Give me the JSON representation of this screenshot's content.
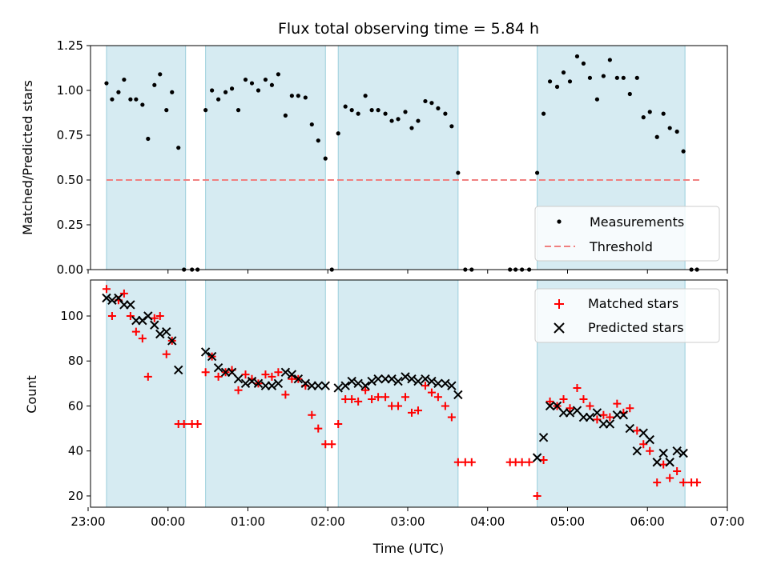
{
  "chart_data": [
    {
      "type": "scatter",
      "title": "Flux total observing time = 5.84 h",
      "xlabel": "",
      "ylabel": "Matched/Predicted stars",
      "ylim": [
        0,
        1.25
      ],
      "yticks": [
        "0.00",
        "0.25",
        "0.50",
        "0.75",
        "1.00",
        "1.25"
      ],
      "xlim_hours": [
        -0.97,
        7.0
      ],
      "observing_windows": [
        [
          -0.77,
          0.22
        ],
        [
          0.47,
          1.97
        ],
        [
          2.13,
          3.63
        ],
        [
          4.62,
          6.47
        ]
      ],
      "legend": "lower-right",
      "threshold": {
        "name": "Threshold",
        "value": 0.5,
        "x_range": [
          -0.77,
          6.67
        ],
        "color": "#f08080"
      },
      "series": [
        {
          "name": "Measurements",
          "color": "#000000",
          "x": [
            -0.77,
            -0.7,
            -0.62,
            -0.55,
            -0.47,
            -0.4,
            -0.32,
            -0.25,
            -0.17,
            -0.1,
            -0.02,
            0.05,
            0.13,
            0.2,
            0.3,
            0.37,
            0.47,
            0.55,
            0.63,
            0.72,
            0.8,
            0.88,
            0.97,
            1.05,
            1.13,
            1.22,
            1.3,
            1.38,
            1.47,
            1.55,
            1.63,
            1.72,
            1.8,
            1.88,
            1.97,
            2.05,
            2.13,
            2.22,
            2.3,
            2.38,
            2.47,
            2.55,
            2.63,
            2.72,
            2.8,
            2.88,
            2.97,
            3.05,
            3.13,
            3.22,
            3.3,
            3.38,
            3.47,
            3.55,
            3.63,
            3.72,
            3.8,
            4.28,
            4.35,
            4.43,
            4.52,
            4.62,
            4.7,
            4.78,
            4.87,
            4.95,
            5.03,
            5.12,
            5.2,
            5.28,
            5.37,
            5.45,
            5.53,
            5.62,
            5.7,
            5.78,
            5.87,
            5.95,
            6.03,
            6.12,
            6.2,
            6.28,
            6.37,
            6.45,
            6.55,
            6.62
          ],
          "y": [
            1.04,
            0.95,
            0.99,
            1.06,
            0.95,
            0.95,
            0.92,
            0.73,
            1.03,
            1.09,
            0.89,
            0.99,
            0.68,
            0.0,
            0.0,
            0.0,
            0.89,
            1.0,
            0.95,
            0.99,
            1.01,
            0.89,
            1.06,
            1.04,
            1.0,
            1.06,
            1.03,
            1.09,
            0.86,
            0.97,
            0.97,
            0.96,
            0.81,
            0.72,
            0.62,
            0.0,
            0.76,
            0.91,
            0.89,
            0.87,
            0.97,
            0.89,
            0.89,
            0.87,
            0.83,
            0.84,
            0.88,
            0.79,
            0.83,
            0.94,
            0.93,
            0.9,
            0.87,
            0.8,
            0.54,
            0.0,
            0.0,
            0.0,
            0.0,
            0.0,
            0.0,
            0.54,
            0.87,
            1.05,
            1.02,
            1.1,
            1.05,
            1.19,
            1.15,
            1.07,
            0.95,
            1.08,
            1.17,
            1.07,
            1.07,
            0.98,
            1.07,
            0.85,
            0.88,
            0.74,
            0.87,
            0.79,
            0.77,
            0.66,
            0.0,
            0.0
          ]
        }
      ]
    },
    {
      "type": "scatter",
      "title": "",
      "xlabel": "Time (UTC)",
      "ylabel": "Count",
      "ylim": [
        15,
        116
      ],
      "yticks": [
        "20",
        "40",
        "60",
        "80",
        "100"
      ],
      "xlim_hours": [
        -0.97,
        7.0
      ],
      "xticks": [
        "23:00",
        "00:00",
        "01:00",
        "02:00",
        "03:00",
        "04:00",
        "05:00",
        "06:00",
        "07:00"
      ],
      "observing_windows": [
        [
          -0.77,
          0.22
        ],
        [
          0.47,
          1.97
        ],
        [
          2.13,
          3.63
        ],
        [
          4.62,
          6.47
        ]
      ],
      "legend": "top-right",
      "series": [
        {
          "name": "Matched stars",
          "marker": "plus",
          "color": "#ff0000",
          "x": [
            -0.77,
            -0.7,
            -0.62,
            -0.55,
            -0.47,
            -0.4,
            -0.32,
            -0.25,
            -0.17,
            -0.1,
            -0.02,
            0.05,
            0.13,
            0.2,
            0.3,
            0.37,
            0.47,
            0.55,
            0.63,
            0.72,
            0.8,
            0.88,
            0.97,
            1.05,
            1.13,
            1.22,
            1.3,
            1.38,
            1.47,
            1.55,
            1.63,
            1.72,
            1.8,
            1.88,
            1.97,
            2.05,
            2.13,
            2.22,
            2.3,
            2.38,
            2.47,
            2.55,
            2.63,
            2.72,
            2.8,
            2.88,
            2.97,
            3.05,
            3.13,
            3.22,
            3.3,
            3.38,
            3.47,
            3.55,
            3.63,
            3.72,
            3.8,
            4.28,
            4.35,
            4.43,
            4.52,
            4.62,
            4.7,
            4.78,
            4.87,
            4.95,
            5.03,
            5.12,
            5.2,
            5.28,
            5.37,
            5.45,
            5.53,
            5.62,
            5.7,
            5.78,
            5.87,
            5.95,
            6.03,
            6.12,
            6.2,
            6.28,
            6.37,
            6.45,
            6.55,
            6.62
          ],
          "y": [
            112,
            100,
            107,
            110,
            100,
            93,
            90,
            73,
            99,
            100,
            83,
            89,
            52,
            52,
            52,
            52,
            75,
            82,
            73,
            75,
            76,
            67,
            74,
            72,
            70,
            74,
            73,
            75,
            65,
            72,
            72,
            69,
            56,
            50,
            43,
            43,
            52,
            63,
            63,
            62,
            67,
            63,
            64,
            64,
            60,
            60,
            64,
            57,
            58,
            69,
            66,
            64,
            60,
            55,
            35,
            35,
            35,
            35,
            35,
            35,
            35,
            20,
            36,
            62,
            60,
            63,
            59,
            68,
            63,
            60,
            54,
            56,
            55,
            61,
            57,
            59,
            49,
            43,
            40,
            26,
            34,
            28,
            31,
            26,
            26,
            26
          ]
        },
        {
          "name": "Predicted stars",
          "marker": "x",
          "color": "#000000",
          "x": [
            -0.77,
            -0.7,
            -0.62,
            -0.55,
            -0.47,
            -0.4,
            -0.32,
            -0.25,
            -0.17,
            -0.1,
            -0.02,
            0.05,
            0.13,
            0.47,
            0.55,
            0.63,
            0.72,
            0.8,
            0.88,
            0.97,
            1.05,
            1.13,
            1.22,
            1.3,
            1.38,
            1.47,
            1.55,
            1.63,
            1.72,
            1.8,
            1.88,
            1.97,
            2.13,
            2.22,
            2.3,
            2.38,
            2.47,
            2.55,
            2.63,
            2.72,
            2.8,
            2.88,
            2.97,
            3.05,
            3.13,
            3.22,
            3.3,
            3.38,
            3.47,
            3.55,
            3.63,
            4.62,
            4.7,
            4.78,
            4.87,
            4.95,
            5.03,
            5.12,
            5.2,
            5.28,
            5.37,
            5.45,
            5.53,
            5.62,
            5.7,
            5.78,
            5.87,
            5.95,
            6.03,
            6.12,
            6.2,
            6.28,
            6.37,
            6.45
          ],
          "y": [
            108,
            107,
            108,
            105,
            105,
            98,
            98,
            100,
            96,
            92,
            93,
            89,
            76,
            84,
            82,
            77,
            75,
            75,
            72,
            70,
            71,
            70,
            69,
            69,
            70,
            75,
            74,
            72,
            70,
            69,
            69,
            69,
            68,
            69,
            71,
            70,
            69,
            71,
            72,
            72,
            72,
            71,
            73,
            72,
            71,
            72,
            71,
            70,
            70,
            69,
            65,
            37,
            46,
            60,
            60,
            57,
            57,
            58,
            55,
            55,
            57,
            52,
            52,
            56,
            56,
            50,
            40,
            48,
            45,
            35,
            39,
            35,
            40,
            39
          ]
        }
      ]
    }
  ]
}
